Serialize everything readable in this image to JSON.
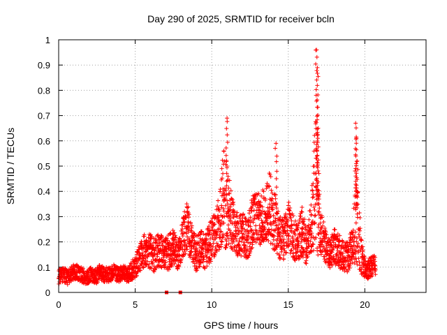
{
  "chart_data": {
    "type": "scatter",
    "title": "Day 290 of 2025, SRMTID for receiver bcln",
    "xlabel": "GPS time / hours",
    "ylabel": "SRMTID / TECUs",
    "xlim": [
      0,
      24
    ],
    "ylim": [
      0,
      1
    ],
    "xticks": [
      "0",
      "5",
      "10",
      "15",
      "20"
    ],
    "yticks": [
      "0",
      "0.1",
      "0.2",
      "0.3",
      "0.4",
      "0.5",
      "0.6",
      "0.7",
      "0.8",
      "0.9",
      "1"
    ],
    "grid": true,
    "marker": "+",
    "color": "#ff0000",
    "series": [
      {
        "name": "SRMTID",
        "x": [
          0.0,
          0.3,
          0.6,
          0.9,
          1.2,
          1.5,
          1.8,
          2.1,
          2.4,
          2.7,
          3.0,
          3.3,
          3.6,
          3.9,
          4.2,
          4.5,
          4.8,
          5.1,
          5.4,
          5.7,
          6.0,
          6.3,
          6.6,
          6.9,
          7.2,
          7.5,
          7.8,
          8.1,
          8.4,
          8.7,
          9.0,
          9.3,
          9.6,
          9.9,
          10.2,
          10.5,
          10.8,
          11.1,
          11.4,
          11.7,
          12.0,
          12.3,
          12.6,
          12.9,
          13.2,
          13.5,
          13.8,
          14.1,
          14.4,
          14.7,
          15.0,
          15.3,
          15.6,
          15.9,
          16.2,
          16.5,
          16.8,
          17.1,
          17.4,
          17.7,
          18.0,
          18.3,
          18.6,
          18.9,
          19.2,
          19.5,
          19.8,
          20.1,
          20.4,
          20.7
        ],
        "y": [
          0.06,
          0.07,
          0.06,
          0.08,
          0.08,
          0.07,
          0.06,
          0.07,
          0.06,
          0.08,
          0.07,
          0.07,
          0.08,
          0.07,
          0.08,
          0.07,
          0.09,
          0.11,
          0.15,
          0.17,
          0.16,
          0.15,
          0.17,
          0.15,
          0.16,
          0.18,
          0.14,
          0.22,
          0.26,
          0.19,
          0.15,
          0.18,
          0.16,
          0.2,
          0.23,
          0.28,
          0.38,
          0.33,
          0.26,
          0.22,
          0.23,
          0.2,
          0.27,
          0.3,
          0.29,
          0.32,
          0.34,
          0.28,
          0.22,
          0.21,
          0.27,
          0.22,
          0.2,
          0.24,
          0.18,
          0.26,
          0.42,
          0.24,
          0.19,
          0.15,
          0.18,
          0.17,
          0.14,
          0.14,
          0.2,
          0.28,
          0.13,
          0.09,
          0.1,
          0.11
        ],
        "amplitude": [
          0.03,
          0.03,
          0.03,
          0.03,
          0.03,
          0.03,
          0.03,
          0.03,
          0.03,
          0.03,
          0.03,
          0.03,
          0.03,
          0.03,
          0.03,
          0.03,
          0.04,
          0.05,
          0.06,
          0.07,
          0.07,
          0.07,
          0.07,
          0.06,
          0.07,
          0.07,
          0.06,
          0.08,
          0.1,
          0.08,
          0.07,
          0.07,
          0.07,
          0.08,
          0.09,
          0.11,
          0.22,
          0.14,
          0.1,
          0.09,
          0.09,
          0.08,
          0.1,
          0.12,
          0.1,
          0.11,
          0.14,
          0.12,
          0.09,
          0.08,
          0.1,
          0.09,
          0.08,
          0.1,
          0.07,
          0.1,
          0.3,
          0.09,
          0.07,
          0.06,
          0.07,
          0.07,
          0.06,
          0.06,
          0.08,
          0.2,
          0.06,
          0.04,
          0.04,
          0.04
        ]
      }
    ],
    "spikes": [
      {
        "x": 7.05,
        "y": 0.0
      },
      {
        "x": 7.95,
        "y": 0.0
      },
      {
        "x": 11.0,
        "y": 0.69
      },
      {
        "x": 14.2,
        "y": 0.59
      },
      {
        "x": 16.85,
        "y": 0.96
      },
      {
        "x": 16.9,
        "y": 0.89
      },
      {
        "x": 16.95,
        "y": 0.65
      },
      {
        "x": 19.4,
        "y": 0.67
      },
      {
        "x": 19.45,
        "y": 0.61
      },
      {
        "x": 19.5,
        "y": 0.52
      }
    ]
  }
}
